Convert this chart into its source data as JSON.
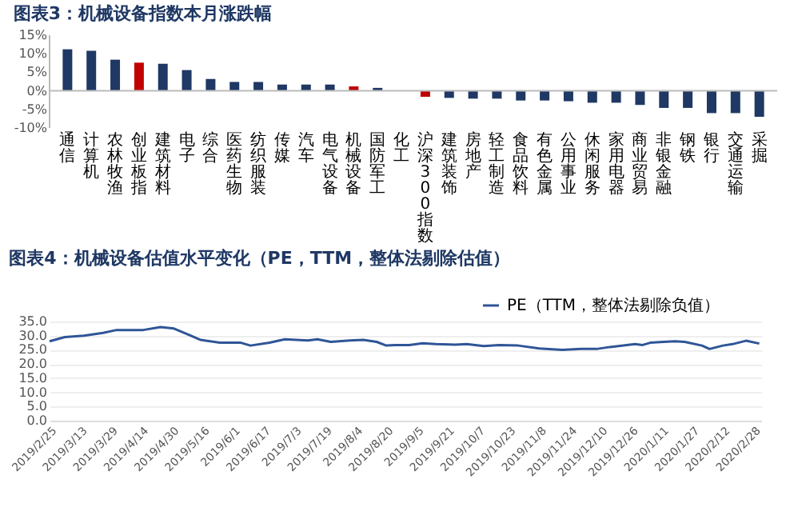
{
  "chart_data": [
    {
      "type": "bar",
      "title": "图表3：机械设备指数本月涨跌幅",
      "categories": [
        "通信",
        "计算机",
        "农林牧渔",
        "创业板指",
        "建筑材料",
        "电子",
        "综合",
        "医药生物",
        "纺织服装",
        "传媒",
        "汽车",
        "电气设备",
        "机械设备",
        "国防军工",
        "化工",
        "沪深300指数",
        "建筑装饰",
        "房地产",
        "轻工制造",
        "食品饮料",
        "有色金属",
        "公用事业",
        "休闲服务",
        "家用电器",
        "商业贸易",
        "非银金融",
        "钢铁",
        "银行",
        "交通运输",
        "采掘"
      ],
      "values": [
        11.2,
        10.8,
        8.4,
        7.6,
        7.3,
        5.6,
        3.2,
        2.4,
        2.4,
        1.7,
        1.7,
        1.7,
        1.2,
        0.8,
        null,
        -1.6,
        -1.9,
        -2.1,
        -2.1,
        -2.6,
        -2.6,
        -2.8,
        -3.2,
        -3.2,
        -3.8,
        -4.6,
        -4.6,
        -6,
        -6,
        -7
      ],
      "colors": [
        "#1f3864",
        "#1f3864",
        "#1f3864",
        "#c00000",
        "#1f3864",
        "#1f3864",
        "#1f3864",
        "#1f3864",
        "#1f3864",
        "#1f3864",
        "#1f3864",
        "#1f3864",
        "#c00000",
        "#1f3864",
        "#1f3864",
        "#c00000",
        "#1f3864",
        "#1f3864",
        "#1f3864",
        "#1f3864",
        "#1f3864",
        "#1f3864",
        "#1f3864",
        "#1f3864",
        "#1f3864",
        "#1f3864",
        "#1f3864",
        "#1f3864",
        "#1f3864",
        "#1f3864"
      ],
      "ylim": [
        -10,
        15
      ],
      "yticks": [
        {
          "value": -10,
          "label": "-10%"
        },
        {
          "value": -5,
          "label": "-5%"
        },
        {
          "value": 0,
          "label": "0%"
        },
        {
          "value": 5,
          "label": "5%"
        },
        {
          "value": 10,
          "label": "10%"
        },
        {
          "value": 15,
          "label": "15%"
        }
      ],
      "grid": false
    },
    {
      "type": "line",
      "title": "图表4：机械设备估值水平变化（PE，TTM，整体法剔除估值）",
      "x": [
        "2019-02-25",
        "2019-03-05",
        "2019-03-15",
        "2019-03-25",
        "2019-04-01",
        "2019-04-15",
        "2019-04-24",
        "2019-05-01",
        "2019-05-08",
        "2019-05-15",
        "2019-05-25",
        "2019-06-05",
        "2019-06-10",
        "2019-06-20",
        "2019-06-28",
        "2019-07-10",
        "2019-07-15",
        "2019-07-22",
        "2019-08-01",
        "2019-08-08",
        "2019-08-15",
        "2019-08-20",
        "2019-08-25",
        "2019-09-01",
        "2019-09-08",
        "2019-09-15",
        "2019-09-25",
        "2019-10-01",
        "2019-10-10",
        "2019-10-18",
        "2019-10-28",
        "2019-11-08",
        "2019-11-20",
        "2019-11-30",
        "2019-12-08",
        "2019-12-15",
        "2019-12-22",
        "2019-12-28",
        "2020-01-01",
        "2020-01-05",
        "2020-01-12",
        "2020-01-18",
        "2020-01-23",
        "2020-02-01",
        "2020-02-05",
        "2020-02-12",
        "2020-02-17",
        "2020-02-24",
        "2020-03-02"
      ],
      "series": [
        {
          "name": "PE（TTM，整体法剔除负值）",
          "color": "#2f5597",
          "values": [
            28,
            29.5,
            30,
            31,
            32,
            32,
            33,
            32.5,
            30.5,
            28.5,
            27.5,
            27.5,
            26.5,
            27.5,
            28.7,
            28.3,
            28.7,
            27.8,
            28.3,
            28.5,
            27.8,
            26.5,
            26.7,
            26.7,
            27.3,
            27,
            26.8,
            27,
            26.3,
            26.7,
            26.5,
            25.5,
            25,
            25.3,
            25.3,
            26,
            26.5,
            27,
            26.7,
            27.5,
            27.8,
            28,
            27.8,
            26.5,
            25.3,
            26.5,
            27,
            28.2,
            27.2
          ]
        }
      ],
      "xlim": [
        "2019-02-25",
        "2020-03-03"
      ],
      "xticks": [
        {
          "value": "2019-02-25",
          "label": "2019/2/25"
        },
        {
          "value": "2019-03-13",
          "label": "2019/3/13"
        },
        {
          "value": "2019-03-29",
          "label": "2019/3/29"
        },
        {
          "value": "2019-04-14",
          "label": "2019/4/14"
        },
        {
          "value": "2019-04-30",
          "label": "2019/4/30"
        },
        {
          "value": "2019-05-16",
          "label": "2019/5/16"
        },
        {
          "value": "2019-06-01",
          "label": "2019/6/1"
        },
        {
          "value": "2019-06-17",
          "label": "2019/6/17"
        },
        {
          "value": "2019-07-03",
          "label": "2019/7/3"
        },
        {
          "value": "2019-07-19",
          "label": "2019/7/19"
        },
        {
          "value": "2019-08-04",
          "label": "2019/8/4"
        },
        {
          "value": "2019-08-20",
          "label": "2019/8/20"
        },
        {
          "value": "2019-09-05",
          "label": "2019/9/5"
        },
        {
          "value": "2019-09-21",
          "label": "2019/9/21"
        },
        {
          "value": "2019-10-07",
          "label": "2019/10/7"
        },
        {
          "value": "2019-10-23",
          "label": "2019/10/23"
        },
        {
          "value": "2019-11-08",
          "label": "2019/11/8"
        },
        {
          "value": "2019-11-24",
          "label": "2019/11/24"
        },
        {
          "value": "2019-12-10",
          "label": "2019/12/10"
        },
        {
          "value": "2019-12-26",
          "label": "2019/12/26"
        },
        {
          "value": "2020-01-11",
          "label": "2020/1/11"
        },
        {
          "value": "2020-01-27",
          "label": "2020/1/27"
        },
        {
          "value": "2020-02-12",
          "label": "2020/2/12"
        },
        {
          "value": "2020-02-28",
          "label": "2020/2/28"
        }
      ],
      "ylim": [
        0,
        35
      ],
      "yticks": [
        {
          "value": 0,
          "label": "0.0"
        },
        {
          "value": 5,
          "label": "5.0"
        },
        {
          "value": 10,
          "label": "10.0"
        },
        {
          "value": 15,
          "label": "15.0"
        },
        {
          "value": 20,
          "label": "20.0"
        },
        {
          "value": 25,
          "label": "25.0"
        },
        {
          "value": 30,
          "label": "30.0"
        },
        {
          "value": 35,
          "label": "35.0"
        }
      ],
      "grid": "y",
      "legend": "top right",
      "marker": "none",
      "line_style": "solid"
    }
  ]
}
